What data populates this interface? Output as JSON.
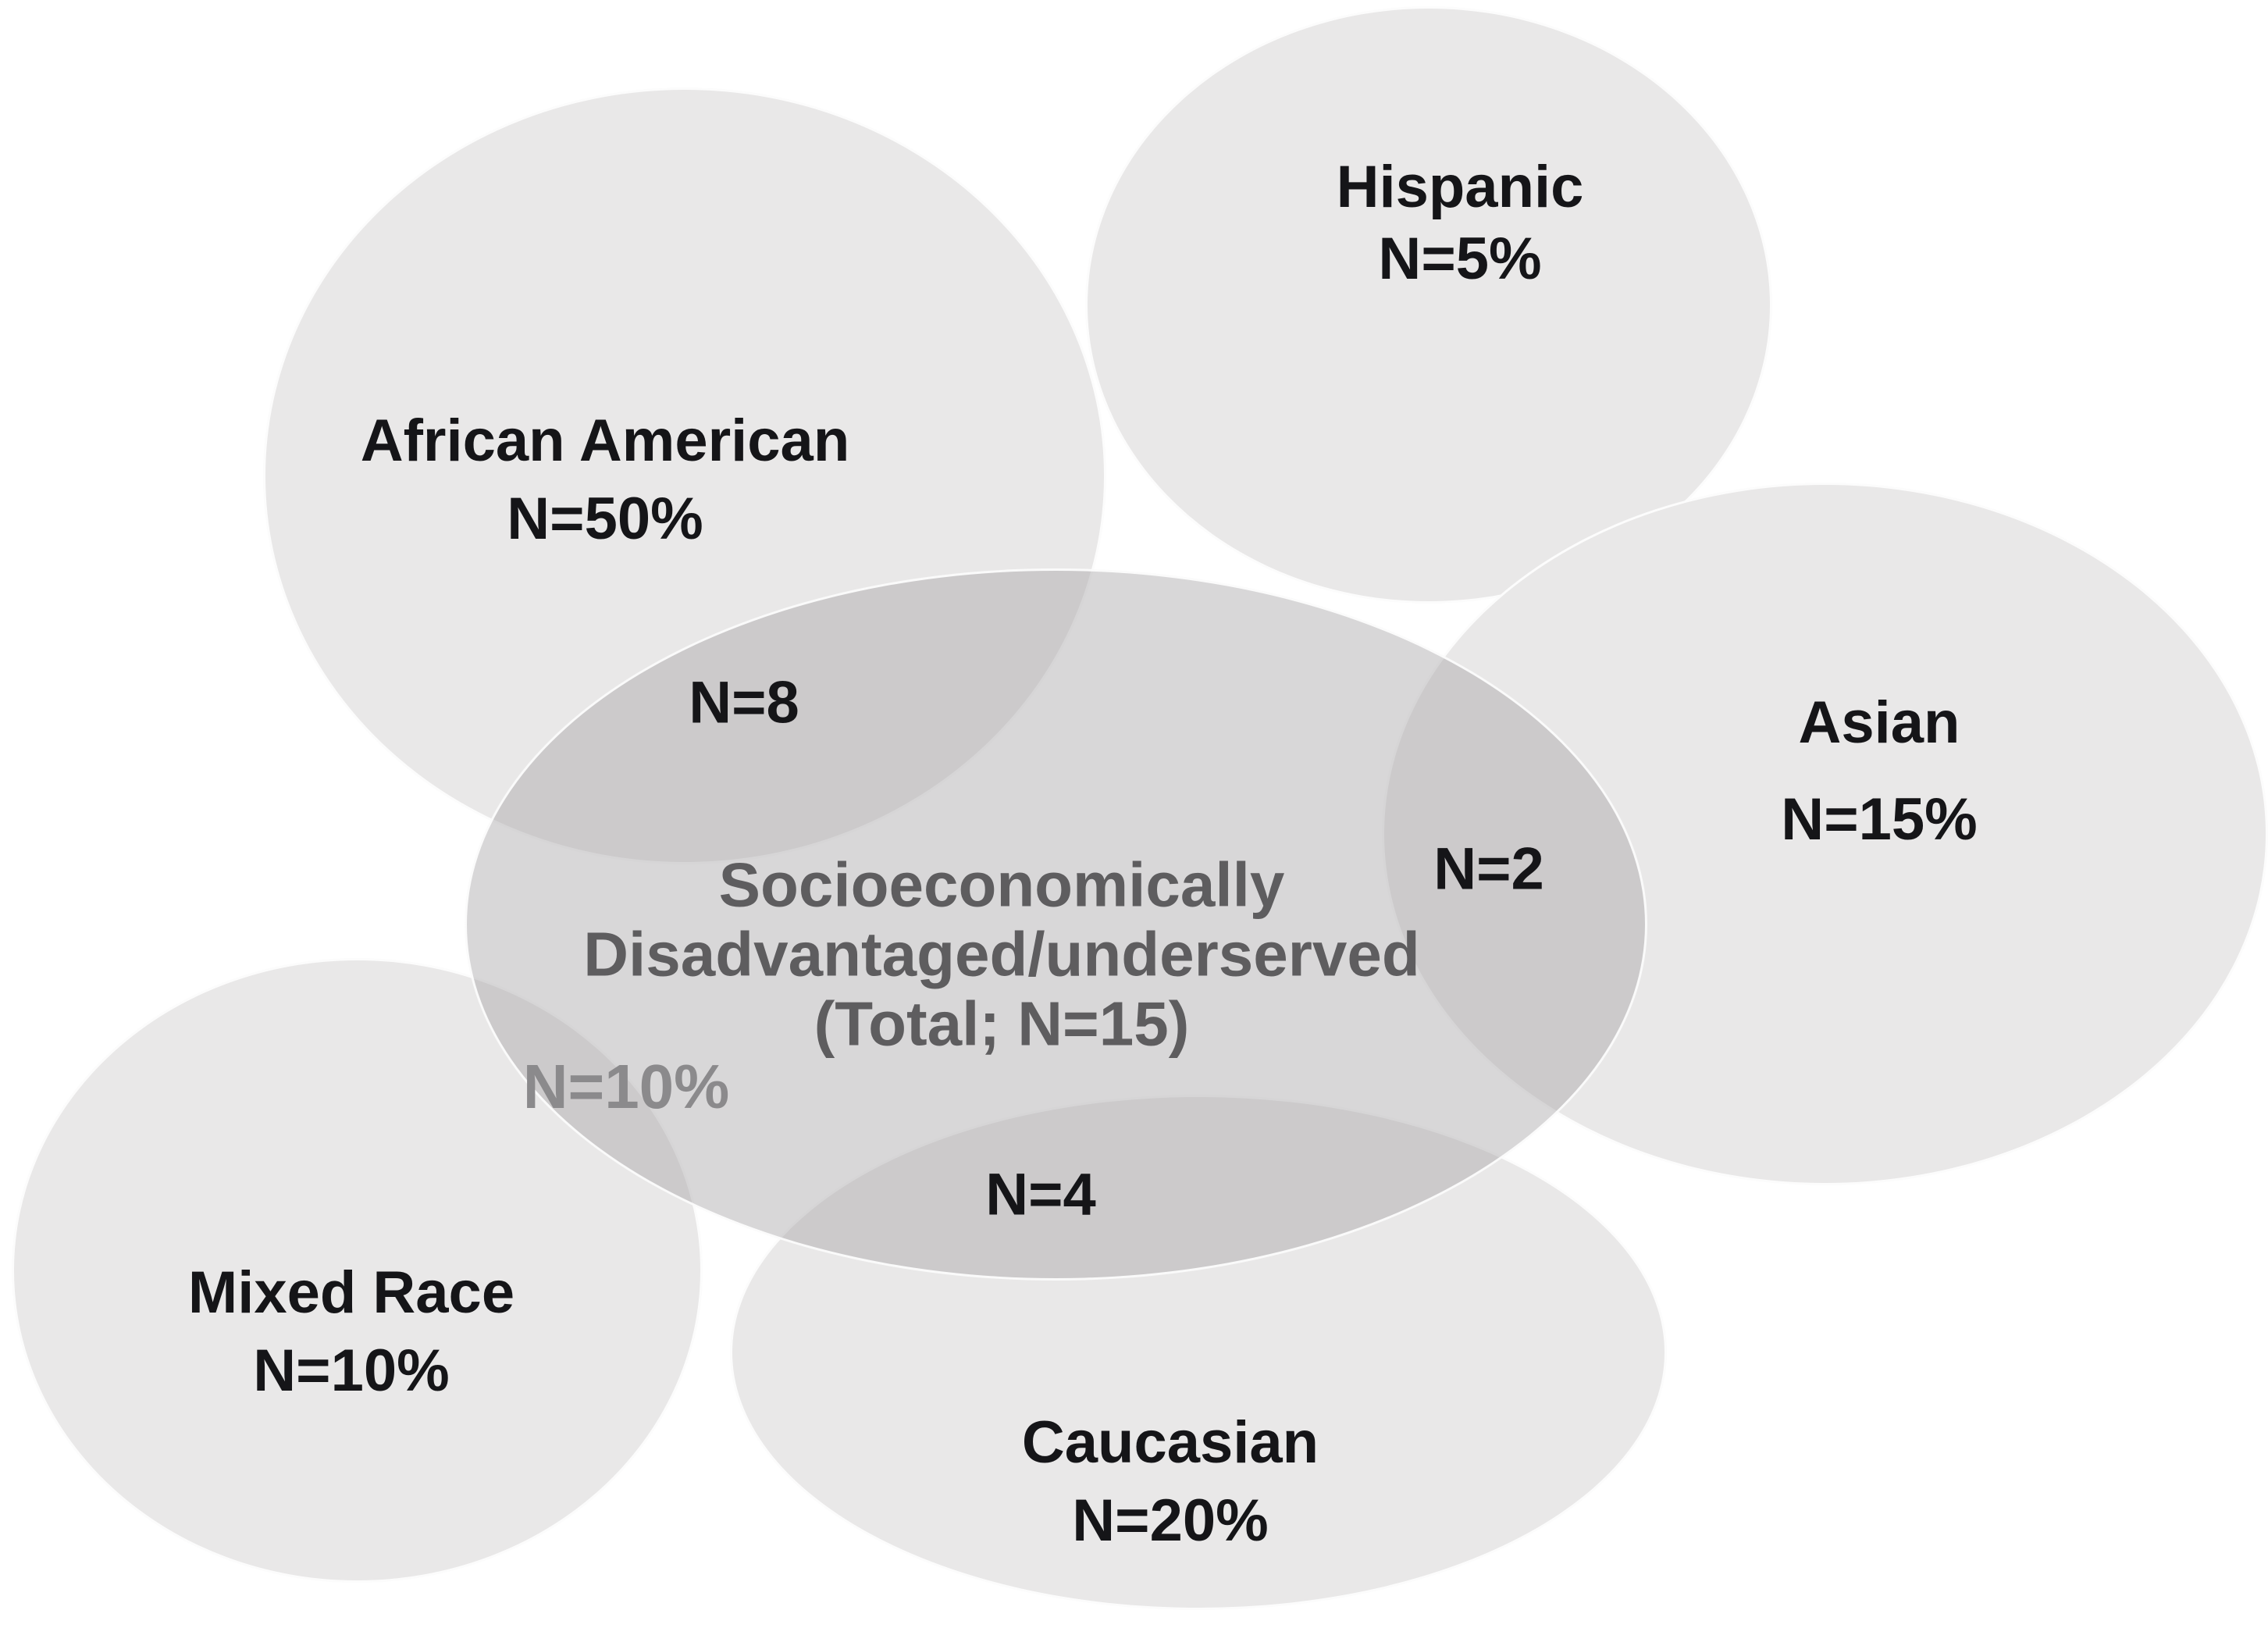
{
  "diagram": {
    "type": "venn",
    "center_ellipse": {
      "lines": [
        "Socioeconomically",
        "Disadvantaged/underserved",
        "(Total; N=15)"
      ]
    },
    "groups": [
      {
        "id": "african-american",
        "label": "African American",
        "value": "N=50%",
        "overlap_with_center": "N=8"
      },
      {
        "id": "hispanic",
        "label": "Hispanic",
        "value": "N=5%"
      },
      {
        "id": "asian",
        "label": "Asian",
        "value": "N=15%",
        "overlap_with_center": "N=2"
      },
      {
        "id": "mixed-race",
        "label": "Mixed Race",
        "value": "N=10%",
        "overlap_with_center": "N=10%"
      },
      {
        "id": "caucasian",
        "label": "Caucasian",
        "value": "N=20%",
        "overlap_with_center": "N=4"
      }
    ],
    "colors": {
      "background": "#ffffff",
      "ellipse_fill": "#e9e8e8",
      "central_fill": "rgba(167,165,167,0.44)",
      "ellipse_outline": "rgba(255,255,255,0.85)",
      "label_text": "#151518",
      "central_text": "#5e5d5f",
      "muted_overlap_text": "#8b8a8c"
    }
  }
}
